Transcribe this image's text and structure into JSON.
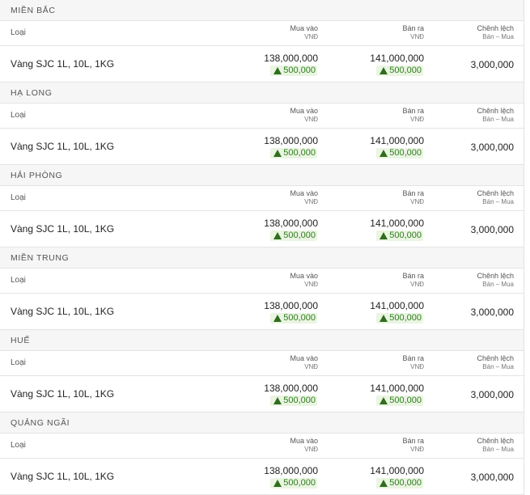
{
  "sections": [
    {
      "region": "MIỀN BẮC",
      "header": {
        "type": "Loại",
        "buy": "Mua vào",
        "buy_unit": "VNĐ",
        "sell": "Bán ra",
        "sell_unit": "VNĐ",
        "diff": "Chênh lệch",
        "diff_note": "Bán – Mua"
      },
      "row": {
        "name": "Vàng SJC 1L, 10L, 1KG",
        "buy": "138,000,000",
        "buy_change": "500,000",
        "sell": "141,000,000",
        "sell_change": "500,000",
        "diff": "3,000,000"
      }
    },
    {
      "region": "HẠ LONG",
      "header": {
        "type": "Loại",
        "buy": "Mua vào",
        "buy_unit": "VNĐ",
        "sell": "Bán ra",
        "sell_unit": "VNĐ",
        "diff": "Chênh lệch",
        "diff_note": "Bán – Mua"
      },
      "row": {
        "name": "Vàng SJC 1L, 10L, 1KG",
        "buy": "138,000,000",
        "buy_change": "500,000",
        "sell": "141,000,000",
        "sell_change": "500,000",
        "diff": "3,000,000"
      }
    },
    {
      "region": "HẢI PHÒNG",
      "header": {
        "type": "Loại",
        "buy": "Mua vào",
        "buy_unit": "VNĐ",
        "sell": "Bán ra",
        "sell_unit": "VNĐ",
        "diff": "Chênh lệch",
        "diff_note": "Bán – Mua"
      },
      "row": {
        "name": "Vàng SJC 1L, 10L, 1KG",
        "buy": "138,000,000",
        "buy_change": "500,000",
        "sell": "141,000,000",
        "sell_change": "500,000",
        "diff": "3,000,000"
      }
    },
    {
      "region": "MIỀN TRUNG",
      "header": {
        "type": "Loại",
        "buy": "Mua vào",
        "buy_unit": "VNĐ",
        "sell": "Bán ra",
        "sell_unit": "VNĐ",
        "diff": "Chênh lệch",
        "diff_note": "Bán – Mua"
      },
      "row": {
        "name": "Vàng SJC 1L, 10L, 1KG",
        "buy": "138,000,000",
        "buy_change": "500,000",
        "sell": "141,000,000",
        "sell_change": "500,000",
        "diff": "3,000,000"
      }
    },
    {
      "region": "HUẾ",
      "header": {
        "type": "Loại",
        "buy": "Mua vào",
        "buy_unit": "VNĐ",
        "sell": "Bán ra",
        "sell_unit": "VNĐ",
        "diff": "Chênh lệch",
        "diff_note": "Bán – Mua"
      },
      "row": {
        "name": "Vàng SJC 1L, 10L, 1KG",
        "buy": "138,000,000",
        "buy_change": "500,000",
        "sell": "141,000,000",
        "sell_change": "500,000",
        "diff": "3,000,000"
      }
    },
    {
      "region": "QUẢNG NGÃI",
      "header": {
        "type": "Loại",
        "buy": "Mua vào",
        "buy_unit": "VNĐ",
        "sell": "Bán ra",
        "sell_unit": "VNĐ",
        "diff": "Chênh lệch",
        "diff_note": "Bán – Mua"
      },
      "row": {
        "name": "Vàng SJC 1L, 10L, 1KG",
        "buy": "138,000,000",
        "buy_change": "500,000",
        "sell": "141,000,000",
        "sell_change": "500,000",
        "diff": "3,000,000"
      }
    }
  ]
}
